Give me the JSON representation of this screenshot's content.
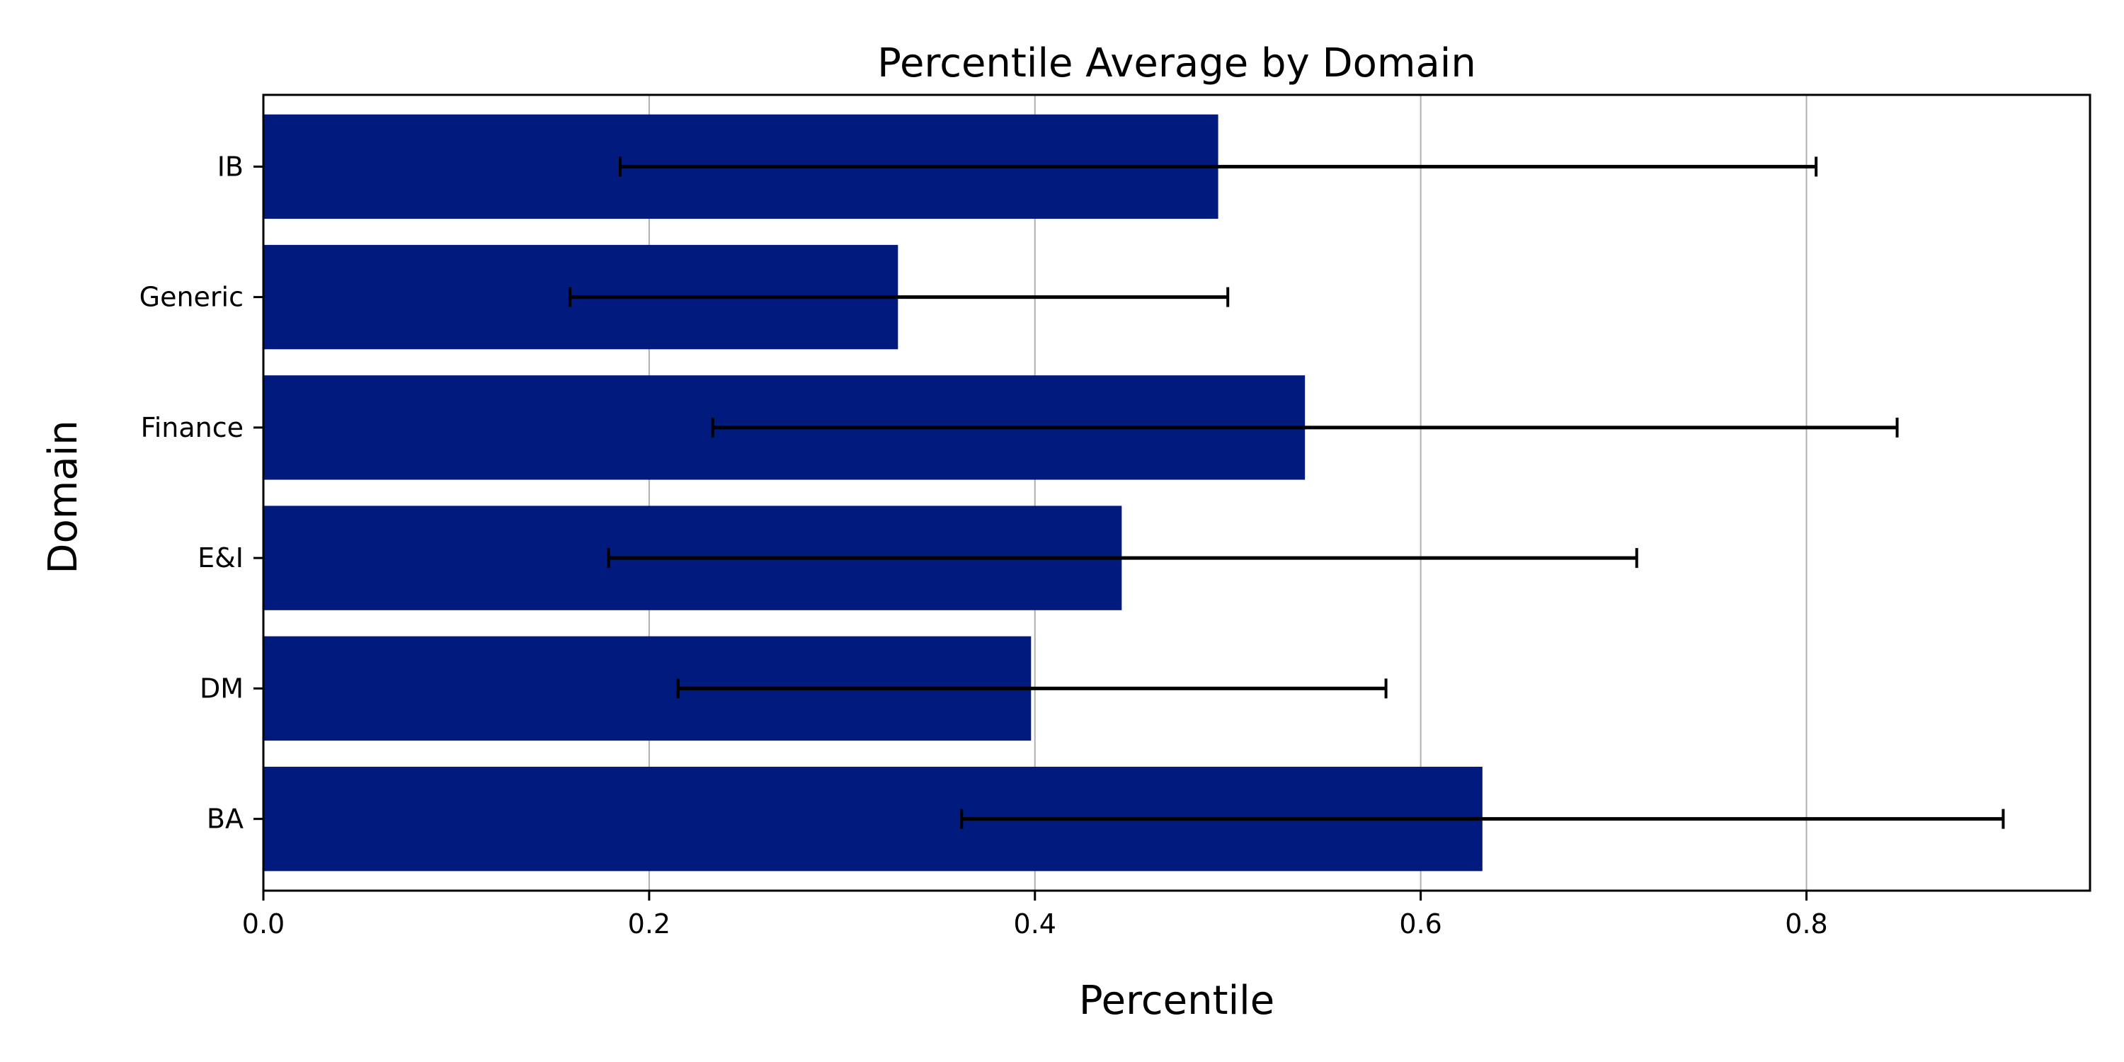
{
  "chart_data": {
    "type": "bar",
    "orientation": "horizontal",
    "title": "Percentile Average by Domain",
    "xlabel": "Percentile",
    "ylabel": "Domain",
    "categories": [
      "BA",
      "DM",
      "E&I",
      "Finance",
      "Generic",
      "IB"
    ],
    "values": [
      0.632,
      0.398,
      0.445,
      0.54,
      0.329,
      0.495
    ],
    "error_low": [
      0.362,
      0.215,
      0.179,
      0.233,
      0.159,
      0.185
    ],
    "error_high": [
      0.902,
      0.582,
      0.712,
      0.847,
      0.5,
      0.805
    ],
    "xlim": [
      0,
      0.947
    ],
    "xticks": [
      0.0,
      0.2,
      0.4,
      0.6,
      0.8
    ],
    "xtick_labels": [
      "0.0",
      "0.2",
      "0.4",
      "0.6",
      "0.8"
    ],
    "grid": "x",
    "legend": "none",
    "bar_color": "#001b7d",
    "error_color": "#000000",
    "grid_color": "#b0b0b0"
  }
}
